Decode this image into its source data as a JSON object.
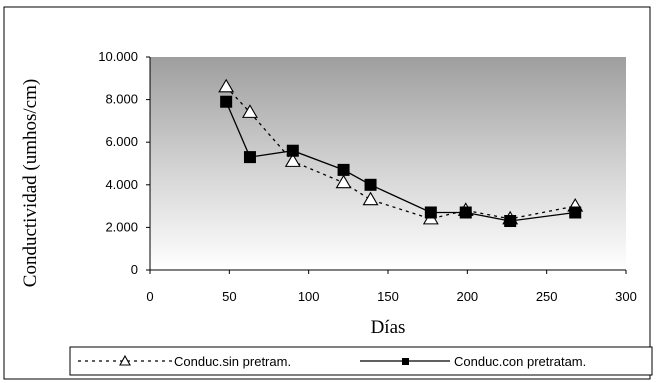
{
  "chart_data": {
    "type": "line",
    "xlabel": "Días",
    "ylabel": "Conductividad (umhos/cm)",
    "xlim": [
      0,
      300
    ],
    "ylim": [
      0,
      10000
    ],
    "x_ticks": [
      "0",
      "50",
      "100",
      "150",
      "200",
      "250",
      "300"
    ],
    "y_ticks": [
      "0",
      "2.000",
      "4.000",
      "6.000",
      "8.000",
      "10.000"
    ],
    "grid": false,
    "legend_position": "bottom",
    "series": [
      {
        "name": "Conduc.sin pretram.",
        "style": "dashed",
        "marker": "open-triangle",
        "color": "#000000",
        "x": [
          48,
          63,
          90,
          122,
          139,
          177,
          199,
          227,
          268
        ],
        "y": [
          8600,
          7400,
          5100,
          4100,
          3300,
          2400,
          2800,
          2400,
          3000
        ]
      },
      {
        "name": "Conduc.con pretratam.",
        "style": "solid",
        "marker": "filled-square",
        "color": "#000000",
        "x": [
          48,
          63,
          90,
          122,
          139,
          177,
          199,
          227,
          268
        ],
        "y": [
          7900,
          5300,
          5600,
          4700,
          4000,
          2700,
          2700,
          2300,
          2700
        ]
      }
    ]
  }
}
